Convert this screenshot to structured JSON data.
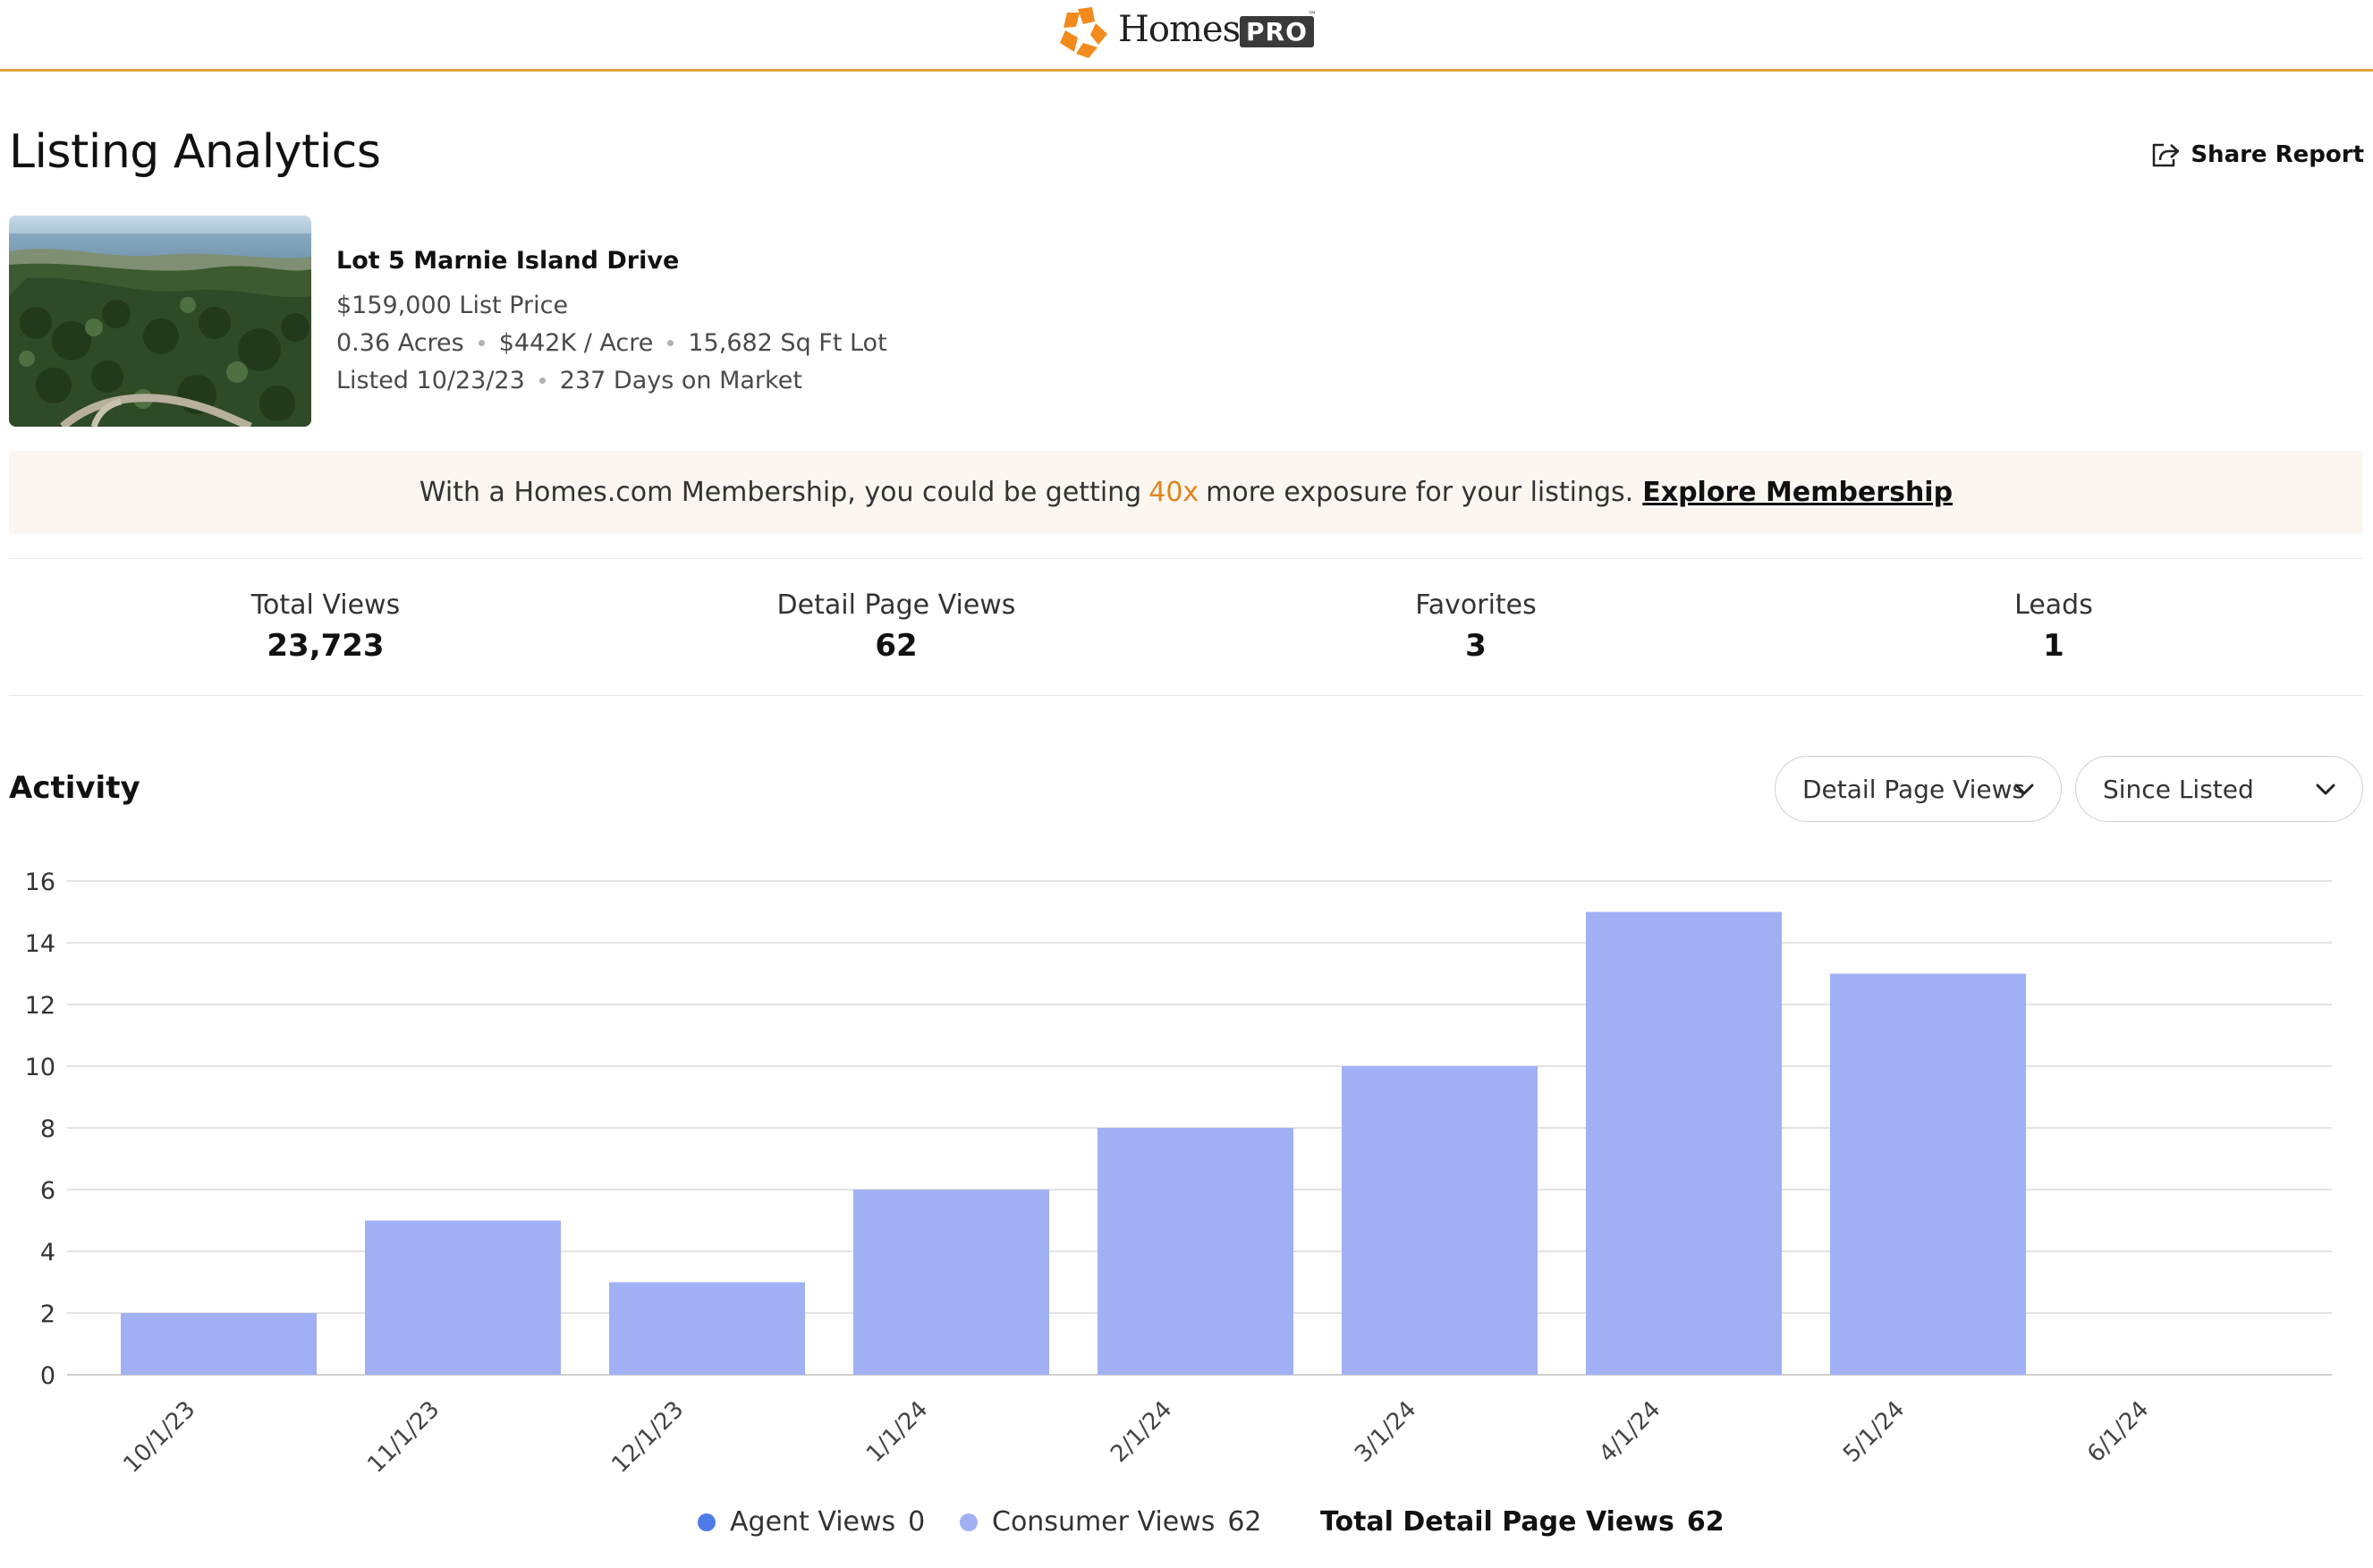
{
  "header": {
    "logo_word": "Homes",
    "logo_badge": "PRO",
    "logo_tm": "™"
  },
  "page": {
    "title": "Listing Analytics",
    "share_label": "Share Report"
  },
  "listing": {
    "address": "Lot 5 Marnie Island Drive",
    "price": "$159,000 List Price",
    "acres": "0.36 Acres",
    "price_per_acre": "$442K / Acre",
    "lot_size": "15,682 Sq Ft Lot",
    "listed": "Listed 10/23/23",
    "days_on_market": "237 Days on Market"
  },
  "banner": {
    "prefix": "With a Homes.com Membership, you could be getting",
    "highlight": "40x",
    "suffix": "more exposure for your listings.",
    "link": "Explore Membership"
  },
  "stats": [
    {
      "label": "Total Views",
      "value": "23,723"
    },
    {
      "label": "Detail Page Views",
      "value": "62"
    },
    {
      "label": "Favorites",
      "value": "3"
    },
    {
      "label": "Leads",
      "value": "1"
    }
  ],
  "activity": {
    "title": "Activity",
    "metric_select": "Detail Page Views",
    "range_select": "Since Listed"
  },
  "colors": {
    "bar": "#a1b0f5",
    "agent_dot": "#4f7ce6",
    "consumer_dot": "#a1b0f5",
    "accent": "#e0841f",
    "brand_border": "#e0a13a"
  },
  "chart_data": {
    "type": "bar",
    "categories": [
      "10/1/23",
      "11/1/23",
      "12/1/23",
      "1/1/24",
      "2/1/24",
      "3/1/24",
      "4/1/24",
      "5/1/24",
      "6/1/24"
    ],
    "series": [
      {
        "name": "Consumer Views",
        "values": [
          2,
          5,
          3,
          6,
          8,
          10,
          15,
          13,
          0
        ]
      }
    ],
    "ylim": [
      0,
      16
    ],
    "yticks": [
      0,
      2,
      4,
      6,
      8,
      10,
      12,
      14,
      16
    ],
    "grid": true
  },
  "legend": {
    "agent_label": "Agent Views",
    "agent_value": "0",
    "consumer_label": "Consumer Views",
    "consumer_value": "62",
    "total_label": "Total Detail Page Views",
    "total_value": "62"
  }
}
